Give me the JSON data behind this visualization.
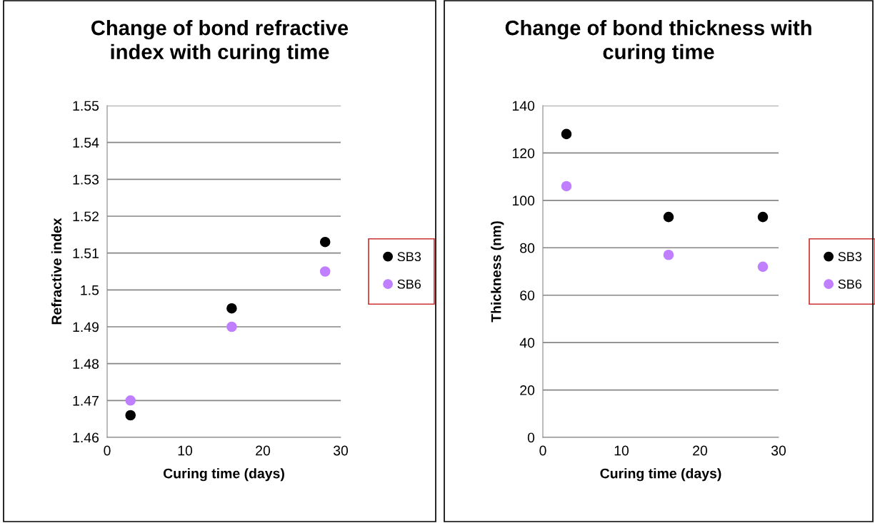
{
  "chart_data": [
    {
      "type": "scatter",
      "title": "Change of bond refractive index with curing time",
      "xlabel": "Curing time (days)",
      "ylabel": "Refractive index",
      "xlim": [
        0,
        30
      ],
      "xticks": [
        0,
        10,
        20,
        30
      ],
      "ylim": [
        1.46,
        1.55
      ],
      "yticks": [
        {
          "value": 1.46,
          "label": "1.46"
        },
        {
          "value": 1.47,
          "label": "1.47"
        },
        {
          "value": 1.48,
          "label": "1.48"
        },
        {
          "value": 1.49,
          "label": "1.49"
        },
        {
          "value": 1.5,
          "label": "1.5"
        },
        {
          "value": 1.51,
          "label": "1.51"
        },
        {
          "value": 1.52,
          "label": "1.52"
        },
        {
          "value": 1.53,
          "label": "1.53"
        },
        {
          "value": 1.54,
          "label": "1.54"
        },
        {
          "value": 1.55,
          "label": "1.55"
        }
      ],
      "grid": "y",
      "legend": "right",
      "marker": "circle",
      "series": [
        {
          "name": "SB3",
          "color": "#000000",
          "x": [
            3,
            16,
            28
          ],
          "values": [
            1.466,
            1.495,
            1.513
          ]
        },
        {
          "name": "SB6",
          "color": "#bf7fff",
          "x": [
            3,
            16,
            28
          ],
          "values": [
            1.47,
            1.49,
            1.505
          ]
        }
      ]
    },
    {
      "type": "scatter",
      "title": "Change of bond thickness with curing time",
      "xlabel": "Curing time (days)",
      "ylabel": "Thickness (nm)",
      "xlim": [
        0,
        30
      ],
      "xticks": [
        0,
        10,
        20,
        30
      ],
      "ylim": [
        0,
        140
      ],
      "yticks": [
        0,
        20,
        40,
        60,
        80,
        100,
        120,
        140
      ],
      "grid": "y",
      "legend": "right",
      "marker": "circle",
      "series": [
        {
          "name": "SB3",
          "color": "#000000",
          "x": [
            3,
            16,
            28
          ],
          "values": [
            128,
            93,
            93
          ]
        },
        {
          "name": "SB6",
          "color": "#bf7fff",
          "x": [
            3,
            16,
            28
          ],
          "values": [
            106,
            77,
            72
          ]
        }
      ]
    }
  ]
}
